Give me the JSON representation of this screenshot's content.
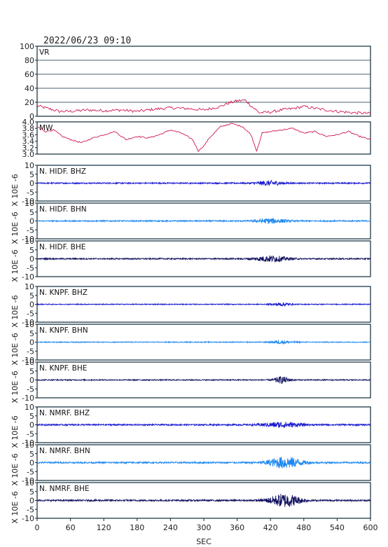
{
  "title": "2022/06/23 09:10",
  "xlabel": "SEC",
  "x_ticks": [
    "0",
    "60",
    "120",
    "180",
    "240",
    "300",
    "360",
    "420",
    "480",
    "540",
    "600"
  ],
  "colors": {
    "frame": "#0d2a3a",
    "vr": "#d01850",
    "bhz": "#1a1ad0",
    "bhn": "#1e88f0",
    "bhe": "#101060"
  },
  "chart_data": [
    {
      "type": "line",
      "label": "VR",
      "xlim": [
        0,
        600
      ],
      "ylim": [
        0,
        100
      ],
      "y_ticks": [
        "100",
        "80",
        "60",
        "40",
        "20",
        "0"
      ],
      "x": [
        0,
        20,
        40,
        60,
        90,
        120,
        150,
        180,
        210,
        240,
        270,
        300,
        330,
        345,
        360,
        375,
        385,
        400,
        420,
        440,
        460,
        480,
        510,
        540,
        570,
        600
      ],
      "y": [
        15,
        11,
        7,
        7,
        9,
        8,
        9,
        7,
        10,
        12,
        11,
        9,
        14,
        19,
        22,
        23,
        15,
        5,
        6,
        9,
        11,
        14,
        10,
        7,
        5,
        4
      ]
    },
    {
      "type": "line",
      "label": "MW",
      "xlim": [
        0,
        600
      ],
      "ylim": [
        3.0,
        4.0
      ],
      "y_ticks": [
        "4.0",
        "3.8",
        "3.6",
        "3.4",
        "3.2",
        "3.0"
      ],
      "x": [
        0,
        15,
        30,
        45,
        60,
        80,
        100,
        120,
        140,
        160,
        180,
        200,
        220,
        240,
        260,
        280,
        290,
        300,
        310,
        330,
        350,
        370,
        385,
        395,
        405,
        420,
        440,
        460,
        480,
        500,
        520,
        540,
        560,
        580,
        600
      ],
      "y": [
        3.85,
        3.7,
        3.75,
        3.55,
        3.45,
        3.35,
        3.5,
        3.6,
        3.7,
        3.45,
        3.55,
        3.5,
        3.6,
        3.75,
        3.65,
        3.45,
        3.1,
        3.25,
        3.5,
        3.85,
        3.95,
        3.85,
        3.6,
        3.1,
        3.65,
        3.7,
        3.75,
        3.8,
        3.65,
        3.7,
        3.55,
        3.6,
        3.7,
        3.55,
        3.45
      ]
    },
    {
      "type": "line",
      "label": "N. HIDF. BHZ",
      "xlim": [
        0,
        600
      ],
      "ylim": [
        -10,
        10
      ],
      "y_ticks": [
        "10",
        "5",
        "0",
        "-5",
        "-10"
      ],
      "unit_label": "X 10E -6",
      "series_color": "bhz",
      "noise": 0.35,
      "event_x": 418,
      "event_amp": 1.2,
      "event_width": 25
    },
    {
      "type": "line",
      "label": "N. HIDF. BHN",
      "xlim": [
        0,
        600
      ],
      "ylim": [
        -10,
        10
      ],
      "y_ticks": [
        "10",
        "5",
        "0",
        "-5",
        "-10"
      ],
      "unit_label": "X 10E -6",
      "series_color": "bhn",
      "noise": 0.35,
      "event_x": 420,
      "event_amp": 1.3,
      "event_width": 28
    },
    {
      "type": "line",
      "label": "N. HIDF. BHE",
      "xlim": [
        0,
        600
      ],
      "ylim": [
        -10,
        10
      ],
      "y_ticks": [
        "10",
        "5",
        "0",
        "-5",
        "-10"
      ],
      "unit_label": "X 10E -6",
      "series_color": "bhe",
      "noise": 0.35,
      "event_x": 422,
      "event_amp": 1.6,
      "event_width": 30
    },
    {
      "type": "line",
      "label": "N. KNPF. BHZ",
      "xlim": [
        0,
        600
      ],
      "ylim": [
        -10,
        10
      ],
      "y_ticks": [
        "10",
        "5",
        "0",
        "-5",
        "-10"
      ],
      "unit_label": "X 10E -6",
      "series_color": "bhz",
      "noise": 0.25,
      "event_x": 440,
      "event_amp": 0.9,
      "event_width": 15
    },
    {
      "type": "line",
      "label": "N. KNPF. BHN",
      "xlim": [
        0,
        600
      ],
      "ylim": [
        -10,
        10
      ],
      "y_ticks": [
        "10",
        "5",
        "0",
        "-5",
        "-10"
      ],
      "unit_label": "X 10E -6",
      "series_color": "bhn",
      "noise": 0.25,
      "event_x": 440,
      "event_amp": 0.9,
      "event_width": 18
    },
    {
      "type": "line",
      "label": "N. KNPF. BHE",
      "xlim": [
        0,
        600
      ],
      "ylim": [
        -10,
        10
      ],
      "y_ticks": [
        "10",
        "5",
        "0",
        "-5",
        "-10"
      ],
      "unit_label": "X 10E -6",
      "series_color": "bhe",
      "noise": 0.3,
      "event_x": 440,
      "event_amp": 1.8,
      "event_width": 14
    },
    {
      "type": "line",
      "label": "N. NMRF. BHZ",
      "xlim": [
        0,
        600
      ],
      "ylim": [
        -10,
        10
      ],
      "y_ticks": [
        "10",
        "5",
        "0",
        "-5",
        "-10"
      ],
      "unit_label": "X 10E -6",
      "series_color": "bhz",
      "noise": 0.4,
      "event_x": 440,
      "event_amp": 1.4,
      "event_width": 35
    },
    {
      "type": "line",
      "label": "N. NMRF. BHN",
      "xlim": [
        0,
        600
      ],
      "ylim": [
        -10,
        10
      ],
      "y_ticks": [
        "10",
        "5",
        "0",
        "-5",
        "-10"
      ],
      "unit_label": "X 10E -6",
      "series_color": "bhn",
      "noise": 0.45,
      "event_x": 446,
      "event_amp": 3.2,
      "event_width": 30
    },
    {
      "type": "line",
      "label": "N. NMRF. BHE",
      "xlim": [
        0,
        600
      ],
      "ylim": [
        -10,
        10
      ],
      "y_ticks": [
        "10",
        "5",
        "0",
        "-5",
        "-10"
      ],
      "unit_label": "X 10E -6",
      "series_color": "bhe",
      "noise": 0.45,
      "event_x": 446,
      "event_amp": 3.6,
      "event_width": 28
    }
  ]
}
